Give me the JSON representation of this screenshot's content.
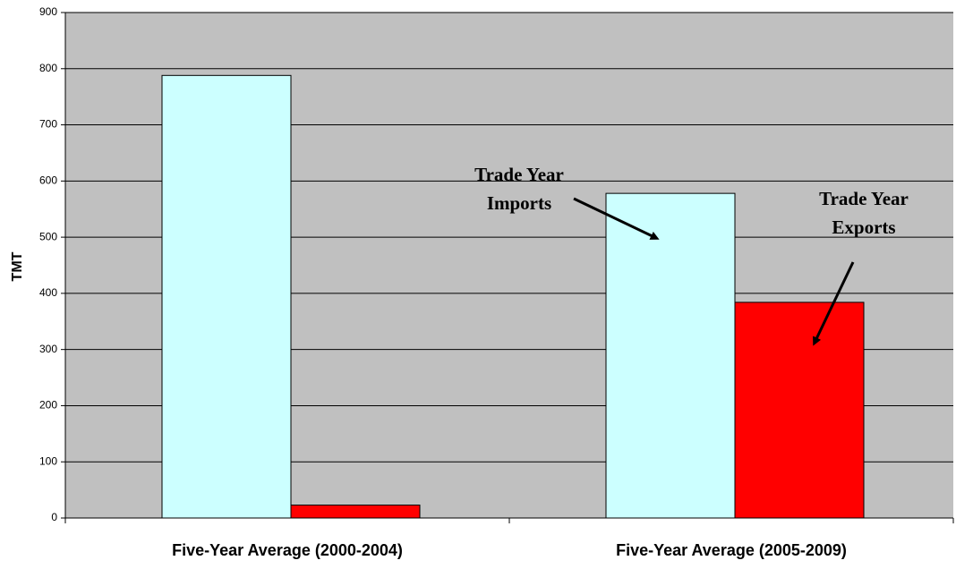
{
  "chart_data": {
    "type": "bar",
    "y_label": "TMT",
    "categories": [
      "Five-Year Average (2000-2004)",
      "Five-Year Average (2005-2009)"
    ],
    "series": [
      {
        "color": "#ccffff",
        "values": [
          788,
          578
        ]
      },
      {
        "color": "#ff0000",
        "values": [
          23,
          384
        ]
      }
    ],
    "annotations": [
      {
        "text": [
          "Trade Year",
          "Imports"
        ]
      },
      {
        "text": [
          "Trade Year",
          "Exports"
        ]
      }
    ],
    "ylim": [
      0,
      900
    ],
    "yticks": [
      0,
      100,
      200,
      300,
      400,
      500,
      600,
      700,
      800,
      900
    ],
    "grid": true,
    "plot_background": "#c0c0c0"
  }
}
